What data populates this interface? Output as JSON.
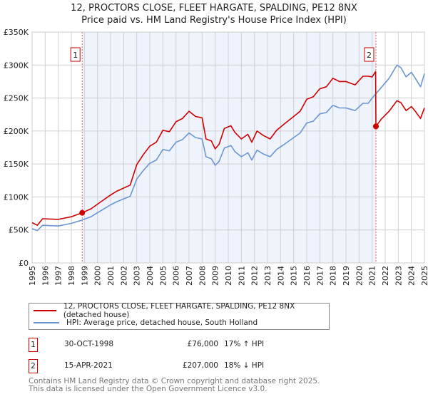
{
  "chart_data": {
    "type": "line",
    "title": "12, PROCTORS CLOSE, FLEET HARGATE, SPALDING, PE12 8NX",
    "subtitle": "Price paid vs. HM Land Registry's House Price Index (HPI)",
    "xlim": [
      1995,
      2025
    ],
    "ylim": [
      0,
      350000
    ],
    "x_ticks": [
      "1995",
      "1996",
      "1997",
      "1998",
      "1999",
      "2000",
      "2001",
      "2002",
      "2003",
      "2004",
      "2005",
      "2006",
      "2007",
      "2008",
      "2009",
      "2010",
      "2011",
      "2012",
      "2013",
      "2014",
      "2015",
      "2016",
      "2017",
      "2018",
      "2019",
      "2020",
      "2021",
      "2022",
      "2023",
      "2024",
      "2025"
    ],
    "y_ticks": [
      {
        "value": 0,
        "label": "£0"
      },
      {
        "value": 50000,
        "label": "£50K"
      },
      {
        "value": 100000,
        "label": "£100K"
      },
      {
        "value": 150000,
        "label": "£150K"
      },
      {
        "value": 200000,
        "label": "£200K"
      },
      {
        "value": 250000,
        "label": "£250K"
      },
      {
        "value": 300000,
        "label": "£300K"
      },
      {
        "value": 350000,
        "label": "£350K"
      }
    ],
    "grid": true,
    "shaded_range": [
      1998.83,
      2021.29
    ],
    "series": [
      {
        "name": "12, PROCTORS CLOSE, FLEET HARGATE, SPALDING, PE12 8NX (detached house)",
        "color": "#cc0000",
        "x": [
          1995.0,
          1995.4,
          1995.8,
          1997,
          1998,
          1998.83,
          1999.5,
          2000.5,
          2001,
          2001.5,
          2002.5,
          2003,
          2003.5,
          2004,
          2004.5,
          2005,
          2005.5,
          2006,
          2006.5,
          2007,
          2007.5,
          2008,
          2008.3,
          2008.7,
          2009,
          2009.3,
          2009.7,
          2010.2,
          2010.5,
          2011,
          2011.5,
          2011.8,
          2012.2,
          2012.7,
          2013.2,
          2013.7,
          2014.3,
          2015,
          2015.5,
          2016,
          2016.5,
          2017,
          2017.5,
          2018,
          2018.5,
          2019,
          2019.7,
          2020.3,
          2020.7,
          2021,
          2021.27,
          2021.29,
          2021.7,
          2022.3,
          2022.9,
          2023.2,
          2023.6,
          2024,
          2024.3,
          2024.7,
          2025
        ],
        "y": [
          61,
          57,
          67,
          66,
          70,
          76,
          82,
          96,
          103,
          109,
          118,
          149,
          164,
          177,
          183,
          201,
          199,
          214,
          219,
          230,
          222,
          220,
          188,
          185,
          173,
          180,
          204,
          208,
          198,
          188,
          195,
          183,
          200,
          193,
          188,
          201,
          211,
          222,
          230,
          248,
          252,
          264,
          267,
          280,
          275,
          275,
          270,
          283,
          283,
          282,
          290,
          207,
          218,
          230,
          246,
          243,
          231,
          237,
          230,
          219,
          235
        ]
      },
      {
        "name": "HPI: Average price, detached house, South Holland",
        "color": "#6a96d4",
        "x": [
          1995.0,
          1995.4,
          1995.8,
          1997,
          1998,
          1998.83,
          1999.5,
          2000.5,
          2001,
          2001.5,
          2002.5,
          2003,
          2003.5,
          2004,
          2004.5,
          2005,
          2005.5,
          2006,
          2006.5,
          2007,
          2007.5,
          2008,
          2008.3,
          2008.7,
          2009,
          2009.3,
          2009.7,
          2010.2,
          2010.5,
          2011,
          2011.5,
          2011.8,
          2012.2,
          2012.7,
          2013.2,
          2013.7,
          2014.3,
          2015,
          2015.5,
          2016,
          2016.5,
          2017,
          2017.5,
          2018,
          2018.5,
          2019,
          2019.7,
          2020.3,
          2020.7,
          2021,
          2021.7,
          2022.3,
          2022.9,
          2023.2,
          2023.6,
          2024,
          2024.3,
          2024.7,
          2025
        ],
        "y": [
          52,
          49,
          57,
          56,
          60,
          65,
          70,
          82,
          88,
          93,
          101,
          127,
          140,
          151,
          156,
          172,
          170,
          183,
          187,
          197,
          190,
          188,
          161,
          158,
          148,
          154,
          174,
          178,
          169,
          161,
          167,
          156,
          171,
          165,
          161,
          172,
          180,
          190,
          197,
          212,
          215,
          226,
          228,
          239,
          235,
          235,
          231,
          242,
          242,
          250,
          266,
          280,
          300,
          296,
          282,
          289,
          280,
          267,
          287
        ]
      }
    ],
    "y_units": "thousands GBP",
    "sales": [
      {
        "id": "1",
        "x": 1998.83,
        "y": 76,
        "date": "30-OCT-1998",
        "price": "£76,000",
        "hpi": "17% ↑ HPI"
      },
      {
        "id": "2",
        "x": 2021.29,
        "y": 207,
        "date": "15-APR-2021",
        "price": "£207,000",
        "hpi": "18% ↓ HPI"
      }
    ]
  },
  "footer": {
    "line1": "Contains HM Land Registry data © Crown copyright and database right 2025.",
    "line2": "This data is licensed under the Open Government Licence v3.0."
  }
}
